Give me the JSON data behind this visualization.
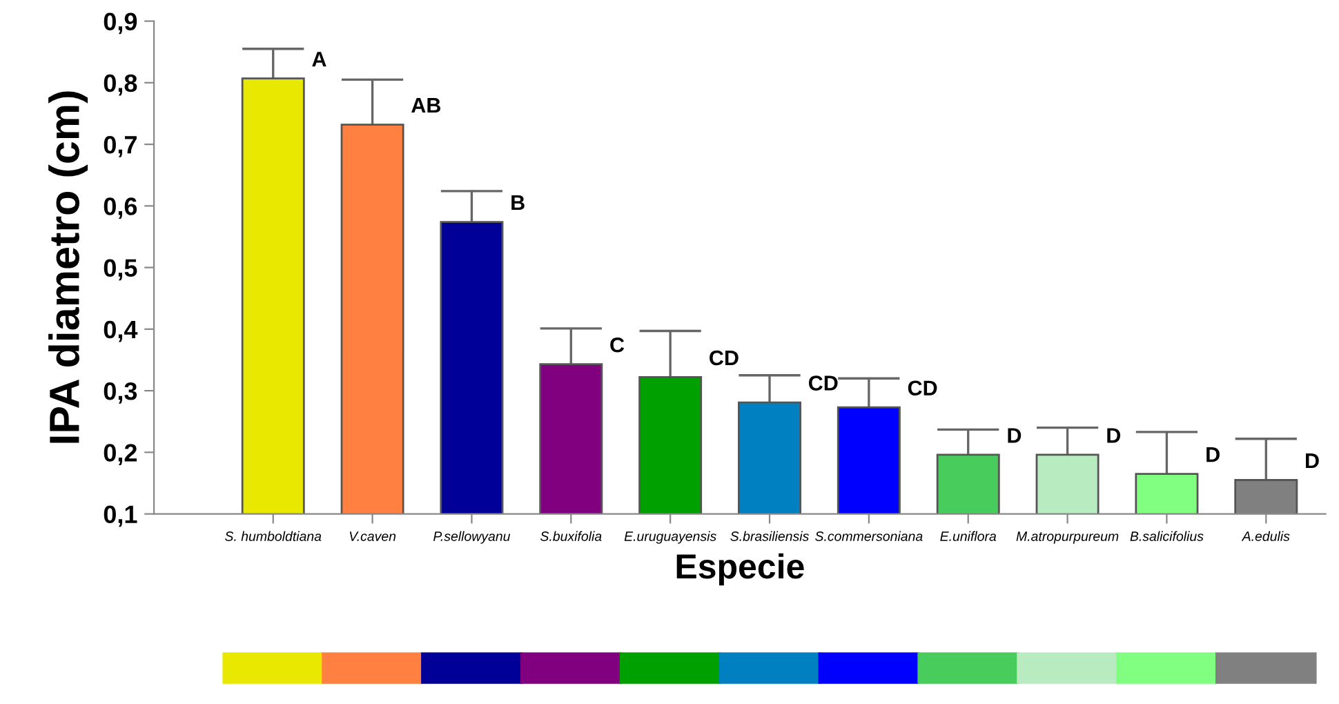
{
  "chart_data": {
    "type": "bar",
    "xlabel": "Especie",
    "ylabel": "IPA diametro (cm)",
    "categories": [
      "S. humboldtiana",
      "V.caven",
      "P.sellowyanu",
      "S.buxifolia",
      "E.uruguayensis",
      "S.brasiliensis",
      "S.commersoniana",
      "E.uniflora",
      "M.atropurpureum",
      "B.salicifolius",
      "A.edulis"
    ],
    "values": [
      0.807,
      0.732,
      0.574,
      0.343,
      0.322,
      0.281,
      0.273,
      0.196,
      0.196,
      0.165,
      0.155
    ],
    "errors": [
      [
        0.807,
        0.855
      ],
      [
        0.732,
        0.805
      ],
      [
        0.574,
        0.624
      ],
      [
        0.343,
        0.401
      ],
      [
        0.322,
        0.397
      ],
      [
        0.281,
        0.325
      ],
      [
        0.273,
        0.32
      ],
      [
        0.196,
        0.237
      ],
      [
        0.196,
        0.24
      ],
      [
        0.165,
        0.233
      ],
      [
        0.155,
        0.222
      ]
    ],
    "colors": [
      "#e8e800",
      "#ff8040",
      "#000099",
      "#800080",
      "#00a000",
      "#0080c0",
      "#0000ff",
      "#48cc5c",
      "#b8ecc0",
      "#80ff80",
      "#808080"
    ],
    "ylim": [
      0.1,
      0.9
    ],
    "yticks": [
      {
        "value": 0.1,
        "label": "0,1"
      },
      {
        "value": 0.2,
        "label": "0,2"
      },
      {
        "value": 0.3,
        "label": "0,3"
      },
      {
        "value": 0.4,
        "label": "0,4"
      },
      {
        "value": 0.5,
        "label": "0,5"
      },
      {
        "value": 0.6,
        "label": "0,6"
      },
      {
        "value": 0.7,
        "label": "0,7"
      },
      {
        "value": 0.8,
        "label": "0,8"
      },
      {
        "value": 0.9,
        "label": "0,9"
      }
    ],
    "annotations": [
      "A",
      "AB",
      "B",
      "C",
      "CD",
      "CD",
      "CD",
      "D",
      "D",
      "D",
      "D"
    ],
    "grid": false
  }
}
